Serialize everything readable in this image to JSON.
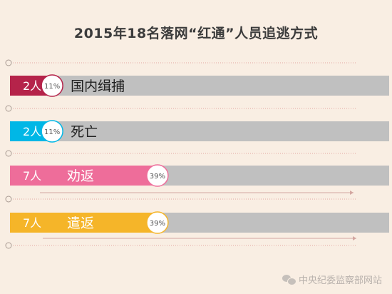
{
  "chart_data": {
    "type": "bar",
    "title": "2015年18名落网“红通”人员追逃方式",
    "total": 18,
    "categories": [
      "国内缉捕",
      "死亡",
      "劝返",
      "遣返"
    ],
    "values": [
      2,
      2,
      7,
      7
    ],
    "count_labels": [
      "2人",
      "2人",
      "7人",
      "7人"
    ],
    "percent_labels": [
      "11%",
      "11%",
      "39%",
      "39%"
    ],
    "colors": [
      "#b5234a",
      "#00b7e6",
      "#ee6d9a",
      "#f5b529"
    ],
    "track_color": "#c0c0c0"
  },
  "watermark": "中央纪委监察部网站"
}
